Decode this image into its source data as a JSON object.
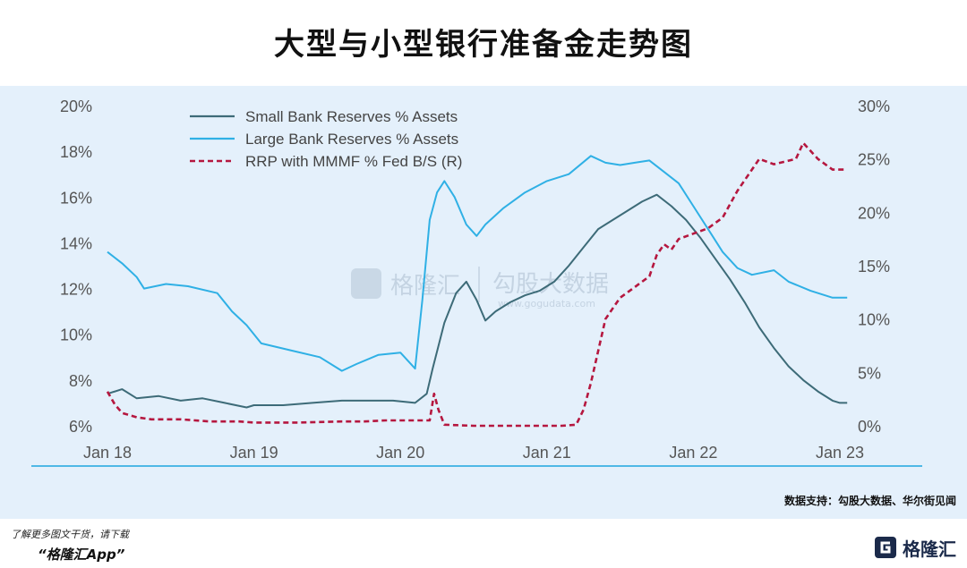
{
  "header": {
    "title": "大型与小型银行准备金走势图"
  },
  "source": "数据支持：勾股大数据、华尔街见闻",
  "footer": {
    "note": "了解更多图文干货，请下载",
    "app": "“格隆汇App”",
    "brand": "格隆汇"
  },
  "watermark": {
    "brand": "格隆汇",
    "product": "勾股大数据",
    "url": "www.gogudata.com"
  },
  "chart_data": {
    "type": "line",
    "x_ticks": [
      "Jan 18",
      "Jan 19",
      "Jan 20",
      "Jan 21",
      "Jan 22",
      "Jan 23"
    ],
    "y_left": {
      "ticks": [
        "20%",
        "18%",
        "16%",
        "14%",
        "12%",
        "10%",
        "8%",
        "6%"
      ],
      "range": [
        6,
        20
      ]
    },
    "y_right": {
      "ticks": [
        "30%",
        "25%",
        "20%",
        "15%",
        "10%",
        "5%",
        "0%"
      ],
      "range": [
        0,
        30
      ]
    },
    "legend_position": "top-left",
    "series": [
      {
        "name": "Small Bank Reserves % Assets",
        "axis": "left",
        "color": "#3d6b78",
        "x": [
          2018.0,
          2018.1,
          2018.2,
          2018.35,
          2018.5,
          2018.65,
          2018.8,
          2018.95,
          2019.0,
          2019.2,
          2019.4,
          2019.6,
          2019.8,
          2019.95,
          2020.1,
          2020.18,
          2020.22,
          2020.3,
          2020.38,
          2020.45,
          2020.52,
          2020.58,
          2020.65,
          2020.75,
          2020.85,
          2020.95,
          2021.05,
          2021.15,
          2021.25,
          2021.35,
          2021.45,
          2021.55,
          2021.65,
          2021.75,
          2021.85,
          2021.95,
          2022.05,
          2022.15,
          2022.25,
          2022.35,
          2022.45,
          2022.55,
          2022.65,
          2022.75,
          2022.85,
          2022.95,
          2023.0,
          2023.05
        ],
        "y": [
          7.4,
          7.6,
          7.2,
          7.3,
          7.1,
          7.2,
          7.0,
          6.8,
          6.9,
          6.9,
          7.0,
          7.1,
          7.1,
          7.1,
          7.0,
          7.4,
          8.5,
          10.5,
          11.8,
          12.3,
          11.5,
          10.6,
          11.0,
          11.4,
          11.7,
          11.9,
          12.3,
          13.0,
          13.8,
          14.6,
          15.0,
          15.4,
          15.8,
          16.1,
          15.6,
          15.0,
          14.2,
          13.3,
          12.4,
          11.4,
          10.3,
          9.4,
          8.6,
          8.0,
          7.5,
          7.1,
          7.0,
          7.0
        ]
      },
      {
        "name": "Large Bank Reserves % Assets",
        "axis": "left",
        "color": "#2fb0e5",
        "x": [
          2018.0,
          2018.1,
          2018.2,
          2018.25,
          2018.4,
          2018.55,
          2018.75,
          2018.85,
          2018.95,
          2019.05,
          2019.25,
          2019.45,
          2019.6,
          2019.7,
          2019.85,
          2020.0,
          2020.1,
          2020.15,
          2020.2,
          2020.25,
          2020.3,
          2020.37,
          2020.45,
          2020.52,
          2020.58,
          2020.7,
          2020.85,
          2021.0,
          2021.15,
          2021.3,
          2021.4,
          2021.5,
          2021.6,
          2021.7,
          2021.8,
          2021.9,
          2022.0,
          2022.1,
          2022.2,
          2022.3,
          2022.4,
          2022.55,
          2022.65,
          2022.8,
          2022.95,
          2023.05
        ],
        "y": [
          13.6,
          13.1,
          12.5,
          12.0,
          12.2,
          12.1,
          11.8,
          11.0,
          10.4,
          9.6,
          9.3,
          9.0,
          8.4,
          8.7,
          9.1,
          9.2,
          8.5,
          11.5,
          15.0,
          16.2,
          16.7,
          16.0,
          14.8,
          14.3,
          14.8,
          15.5,
          16.2,
          16.7,
          17.0,
          17.8,
          17.5,
          17.4,
          17.5,
          17.6,
          17.1,
          16.6,
          15.6,
          14.6,
          13.6,
          12.9,
          12.6,
          12.8,
          12.3,
          11.9,
          11.6,
          11.6
        ]
      },
      {
        "name": "RRP with MMMF % Fed B/S (R)",
        "axis": "right",
        "color": "#b5173f",
        "dashed": true,
        "x": [
          2018.0,
          2018.05,
          2018.1,
          2018.2,
          2018.3,
          2018.5,
          2018.7,
          2018.9,
          2019.0,
          2019.3,
          2019.6,
          2019.75,
          2019.9,
          2020.0,
          2020.1,
          2020.2,
          2020.23,
          2020.26,
          2020.3,
          2020.5,
          2020.8,
          2021.0,
          2021.1,
          2021.2,
          2021.25,
          2021.3,
          2021.4,
          2021.45,
          2021.5,
          2021.6,
          2021.7,
          2021.75,
          2021.8,
          2021.85,
          2021.9,
          2022.0,
          2022.1,
          2022.2,
          2022.3,
          2022.4,
          2022.45,
          2022.55,
          2022.7,
          2022.75,
          2022.85,
          2022.95,
          2023.05
        ],
        "y": [
          3.2,
          2.0,
          1.2,
          0.8,
          0.6,
          0.6,
          0.4,
          0.4,
          0.3,
          0.3,
          0.4,
          0.4,
          0.5,
          0.5,
          0.5,
          0.5,
          3.0,
          1.5,
          0.1,
          0.0,
          0.0,
          0.0,
          0.0,
          0.1,
          1.5,
          4.0,
          10.0,
          11.0,
          12.0,
          13.0,
          14.0,
          16.0,
          17.0,
          16.5,
          17.5,
          18.0,
          18.5,
          19.5,
          22.0,
          24.0,
          25.0,
          24.5,
          25.0,
          26.5,
          25.0,
          24.0,
          24.0
        ]
      }
    ]
  }
}
